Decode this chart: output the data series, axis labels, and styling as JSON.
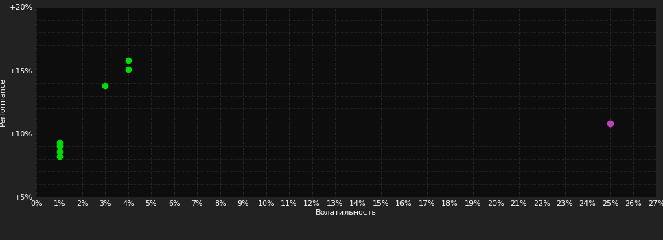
{
  "background_color": "#222222",
  "plot_bg_color": "#0d0d0d",
  "grid_color": "#3a3a3a",
  "grid_style": "dotted",
  "xlabel": "Волатильность",
  "ylabel": "Performance",
  "xlim": [
    0,
    0.27
  ],
  "ylim": [
    0.05,
    0.2
  ],
  "xtick_step": 0.01,
  "ytick_major": [
    0.05,
    0.1,
    0.15,
    0.2
  ],
  "ytick_labels": [
    "+5%",
    "+10%",
    "+15%",
    "+20%"
  ],
  "ytick_minor_step": 0.01,
  "green_points": [
    [
      0.01,
      0.093
    ],
    [
      0.01,
      0.09
    ],
    [
      0.01,
      0.086
    ],
    [
      0.01,
      0.082
    ],
    [
      0.03,
      0.138
    ],
    [
      0.04,
      0.158
    ],
    [
      0.04,
      0.151
    ]
  ],
  "purple_points": [
    [
      0.25,
      0.108
    ]
  ],
  "green_color": "#00dd00",
  "purple_color": "#bb44bb",
  "marker_size": 6,
  "font_color": "#ffffff",
  "font_size": 8,
  "ylabel_fontsize": 8,
  "xlabel_fontsize": 8
}
